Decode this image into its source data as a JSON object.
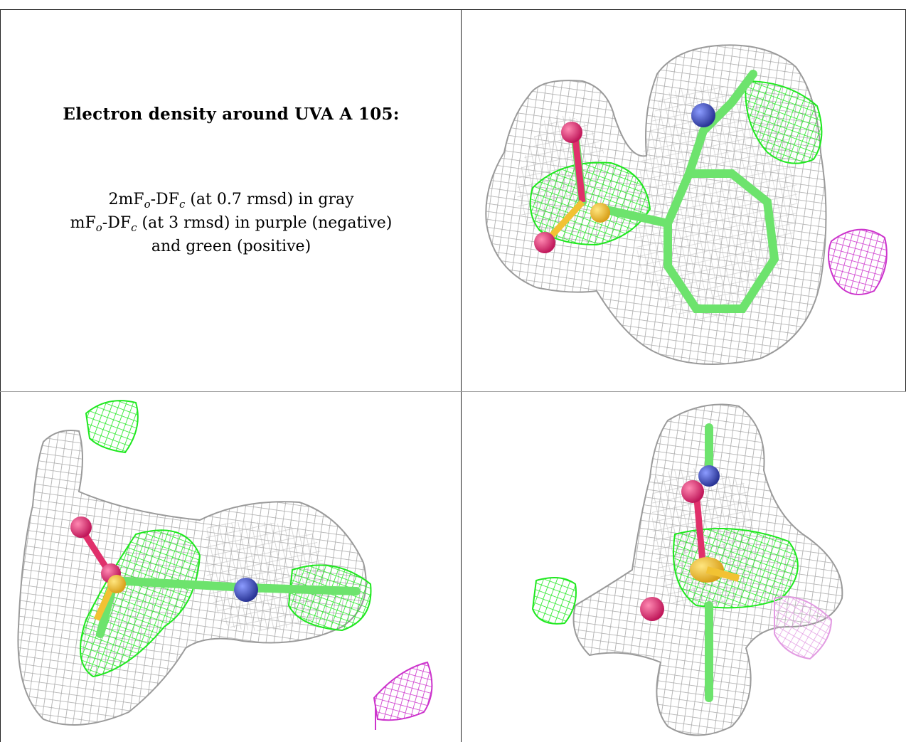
{
  "caption": {
    "title": "Electron density around UVA A 105:",
    "line1": {
      "prefix": "2mF",
      "sub1": "o",
      "middle": "-DF",
      "sub2": "c",
      "suffix": " (at 0.7 rmsd) in gray"
    },
    "line2": {
      "prefix": "mF",
      "sub1": "o",
      "middle": "-DF",
      "sub2": "c",
      "suffix": " (at 3 rmsd) in purple (negative)"
    },
    "line3": "and green (positive)"
  },
  "colors": {
    "map_2fofc": "#a9a9a9",
    "positive_map": "#1ee81e",
    "negative_map": "#cc33cc",
    "oxygen": "#e0306b",
    "nitrogen": "#3a4cc0",
    "sulfur": "#f2c233",
    "carbon_stick": "#6de36d"
  },
  "panels": [
    {
      "view": "top-right",
      "icon": "density-map-view-1"
    },
    {
      "view": "bottom-left",
      "icon": "density-map-view-2"
    },
    {
      "view": "bottom-right",
      "icon": "density-map-view-3"
    }
  ]
}
